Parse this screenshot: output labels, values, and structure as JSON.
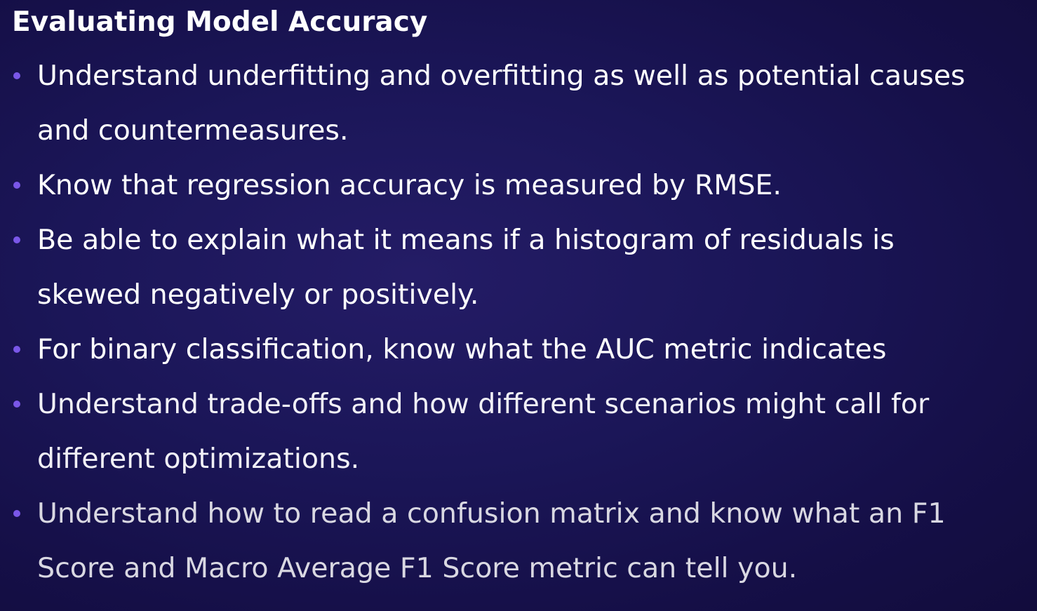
{
  "slide": {
    "title": "Evaluating Model Accuracy",
    "bullet_color": "#7a57e8",
    "bullets": [
      {
        "lines": [
          "Understand underfitting and overfitting as well as potential causes",
          "and countermeasures."
        ]
      },
      {
        "lines": [
          "Know that regression accuracy is measured by RMSE."
        ]
      },
      {
        "lines": [
          "Be able to explain what it means if a histogram of residuals is",
          "skewed negatively or positively."
        ]
      },
      {
        "lines": [
          "For binary classification, know what the AUC metric indicates"
        ]
      },
      {
        "lines": [
          "Understand trade-offs and how different scenarios might call for",
          "different optimizations."
        ]
      },
      {
        "lines": [
          "Understand how to read a confusion matrix and know what an F1",
          "Score and Macro Average F1 Score metric can tell you."
        ]
      }
    ]
  }
}
